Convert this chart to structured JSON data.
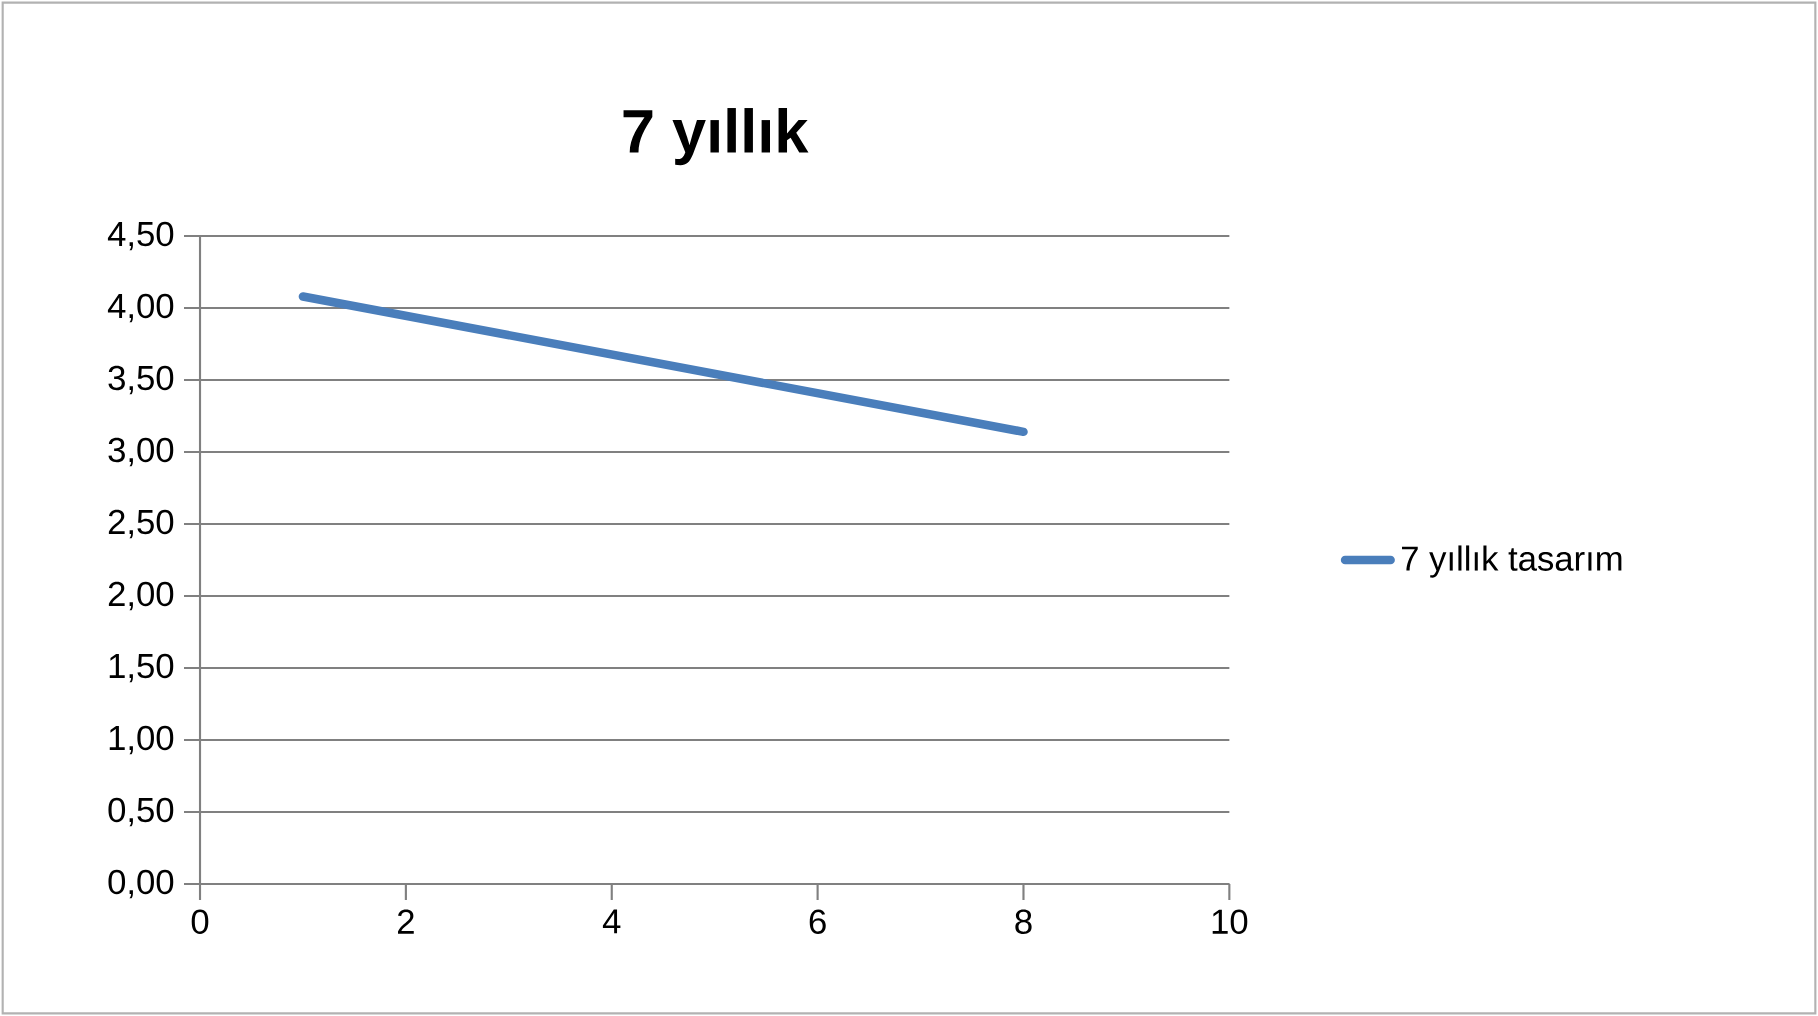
{
  "chart_data": {
    "type": "line",
    "title": "7 yıllık",
    "series": [
      {
        "name": "7 yıllık tasarım",
        "color": "#4a7ebb",
        "x": [
          1,
          8
        ],
        "values": [
          4.08,
          3.14
        ]
      }
    ],
    "xlim": [
      0,
      10
    ],
    "xticks": [
      0,
      2,
      4,
      6,
      8,
      10
    ],
    "ylim": [
      0,
      4.5
    ],
    "yticks": [
      {
        "value": 0,
        "label": "0,00"
      },
      {
        "value": 0.5,
        "label": "0,50"
      },
      {
        "value": 1,
        "label": "1,00"
      },
      {
        "value": 1.5,
        "label": "1,50"
      },
      {
        "value": 2,
        "label": "2,00"
      },
      {
        "value": 2.5,
        "label": "2,50"
      },
      {
        "value": 3,
        "label": "3,00"
      },
      {
        "value": 3.5,
        "label": "3,50"
      },
      {
        "value": 4,
        "label": "4,00"
      },
      {
        "value": 4.5,
        "label": "4,50"
      }
    ],
    "grid": "y",
    "legend": "right",
    "marker": "none",
    "line_style": "solid"
  }
}
